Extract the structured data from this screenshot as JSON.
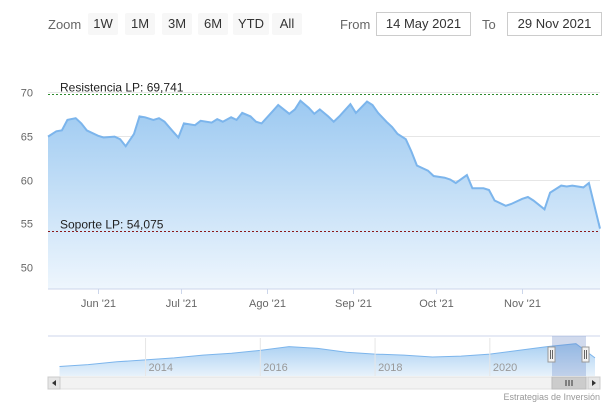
{
  "toolbar": {
    "zoom_label": "Zoom",
    "buttons": [
      "1W",
      "1M",
      "3M",
      "6M",
      "YTD",
      "All"
    ],
    "from_label": "From",
    "from_value": "14 May 2021",
    "to_label": "To",
    "to_value": "29 Nov 2021"
  },
  "chart_data": {
    "type": "area",
    "title": "",
    "xlabel": "",
    "ylabel": "",
    "ylim": [
      47.5,
      72.5
    ],
    "y_ticks": [
      50,
      55,
      60,
      65,
      70
    ],
    "x_ticks": [
      {
        "label": "Jun '21",
        "date": "2021-06-01"
      },
      {
        "label": "Jul '21",
        "date": "2021-07-01"
      },
      {
        "label": "Ago '21",
        "date": "2021-08-01"
      },
      {
        "label": "Sep '21",
        "date": "2021-09-01"
      },
      {
        "label": "Oct '21",
        "date": "2021-10-01"
      },
      {
        "label": "Nov '21",
        "date": "2021-11-01"
      }
    ],
    "x_range": [
      "2021-05-14",
      "2021-11-29"
    ],
    "grid": true,
    "legend": "none",
    "colors": {
      "line": "#7cb5ec",
      "fill_top": "#9cc9f1",
      "fill_bottom": "#e8f3fc",
      "resistance": "#2e8b2e",
      "support": "#8b1a1a"
    },
    "plot_lines": [
      {
        "label": "Resistencia LP: 69,741",
        "value": 69.741,
        "color": "#2e8b2e"
      },
      {
        "label": "Soporte LP: 54,075",
        "value": 54.075,
        "color": "#8b1a1a"
      }
    ],
    "series": [
      {
        "x": [
          "2021-05-14",
          "2021-05-17",
          "2021-05-19",
          "2021-05-21",
          "2021-05-24",
          "2021-05-26",
          "2021-05-28",
          "2021-06-01",
          "2021-06-03",
          "2021-06-07",
          "2021-06-09",
          "2021-06-11",
          "2021-06-14",
          "2021-06-16",
          "2021-06-18",
          "2021-06-21",
          "2021-06-23",
          "2021-06-25",
          "2021-06-28",
          "2021-06-30",
          "2021-07-02",
          "2021-07-06",
          "2021-07-08",
          "2021-07-12",
          "2021-07-14",
          "2021-07-16",
          "2021-07-19",
          "2021-07-21",
          "2021-07-23",
          "2021-07-26",
          "2021-07-28",
          "2021-07-30",
          "2021-08-03",
          "2021-08-05",
          "2021-08-09",
          "2021-08-11",
          "2021-08-13",
          "2021-08-16",
          "2021-08-18",
          "2021-08-20",
          "2021-08-23",
          "2021-08-25",
          "2021-08-27",
          "2021-08-31",
          "2021-09-02",
          "2021-09-06",
          "2021-09-08",
          "2021-09-10",
          "2021-09-13",
          "2021-09-15",
          "2021-09-17",
          "2021-09-20",
          "2021-09-22",
          "2021-09-24",
          "2021-09-28",
          "2021-09-30",
          "2021-10-04",
          "2021-10-06",
          "2021-10-08",
          "2021-10-12",
          "2021-10-14",
          "2021-10-18",
          "2021-10-20",
          "2021-10-22",
          "2021-10-26",
          "2021-10-28",
          "2021-11-01",
          "2021-11-03",
          "2021-11-05",
          "2021-11-09",
          "2021-11-11",
          "2021-11-15",
          "2021-11-17",
          "2021-11-19",
          "2021-11-23",
          "2021-11-25",
          "2021-11-29"
        ],
        "y": [
          64.9,
          65.5,
          65.6,
          66.8,
          67.0,
          66.4,
          65.6,
          65.0,
          64.8,
          64.9,
          64.6,
          63.8,
          65.2,
          67.2,
          67.1,
          66.8,
          67.0,
          66.6,
          65.5,
          64.8,
          66.4,
          66.2,
          66.7,
          66.5,
          66.9,
          66.6,
          67.1,
          66.8,
          67.6,
          67.2,
          66.6,
          66.4,
          67.8,
          68.5,
          67.5,
          68.0,
          69.0,
          68.2,
          67.5,
          68.0,
          67.2,
          66.6,
          67.2,
          68.6,
          67.6,
          68.9,
          68.5,
          67.6,
          66.6,
          66.0,
          65.2,
          64.6,
          63.2,
          61.6,
          61.0,
          60.4,
          60.2,
          60.0,
          59.6,
          60.5,
          59.0,
          59.0,
          58.8,
          57.6,
          57.0,
          57.2,
          57.8,
          58.0,
          57.6,
          56.6,
          58.5,
          59.3,
          59.2,
          59.3,
          59.1,
          59.6,
          54.4
        ]
      }
    ],
    "navigator": {
      "x_ticks": [
        "2014",
        "2016",
        "2018",
        "2020"
      ],
      "series": [
        {
          "x": [
            "2012-07",
            "2013-01",
            "2013-07",
            "2014-01",
            "2014-07",
            "2015-01",
            "2015-07",
            "2016-01",
            "2016-07",
            "2017-01",
            "2017-07",
            "2018-01",
            "2018-07",
            "2019-01",
            "2019-07",
            "2020-01",
            "2020-07",
            "2021-01",
            "2021-07",
            "2021-11"
          ],
          "y": [
            45,
            47,
            50,
            52,
            54,
            57,
            59,
            62,
            66,
            64,
            60,
            58,
            57,
            55,
            56,
            58,
            62,
            66,
            69,
            54
          ]
        }
      ]
    }
  },
  "credits": "Estrategias de Inversión"
}
